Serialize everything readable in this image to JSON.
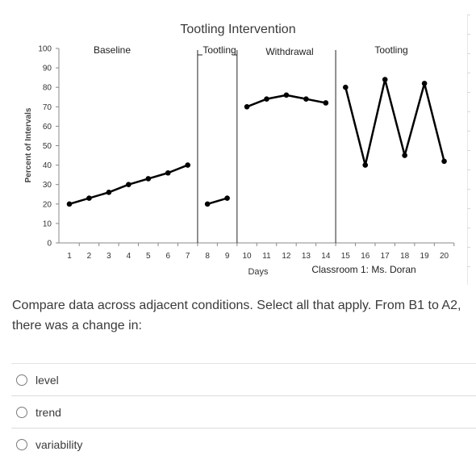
{
  "chart_data": {
    "type": "line",
    "title": "Tootling Intervention",
    "ylabel": "Percent of Intervals",
    "xlabel": "Days",
    "ylim": [
      0,
      100
    ],
    "yticks": [
      0,
      10,
      20,
      30,
      40,
      50,
      60,
      70,
      80,
      90,
      100
    ],
    "xticks": [
      1,
      2,
      3,
      4,
      5,
      6,
      7,
      8,
      9,
      10,
      11,
      12,
      13,
      14,
      15,
      16,
      17,
      18,
      19,
      20
    ],
    "subtitle": "Classroom 1: Ms. Doran",
    "phases": [
      {
        "label": "Baseline",
        "x": [
          1,
          2,
          3,
          4,
          5,
          6,
          7
        ],
        "values": [
          20,
          23,
          26,
          30,
          33,
          36,
          40
        ]
      },
      {
        "label": "Tootling",
        "x": [
          8,
          9
        ],
        "values": [
          20,
          23
        ]
      },
      {
        "label": "Withdrawal",
        "x": [
          10,
          11,
          12,
          13,
          14
        ],
        "values": [
          70,
          74,
          76,
          74,
          72
        ]
      },
      {
        "label": "Tootling",
        "x": [
          15,
          16,
          17,
          18,
          19,
          20
        ],
        "values": [
          80,
          40,
          84,
          45,
          82,
          42
        ]
      }
    ],
    "phase_change_after_day": [
      7.5,
      9.5,
      14.5
    ]
  },
  "question": {
    "text": "Compare data across adjacent conditions. Select all that apply. From B1 to A2, there was a change in:",
    "options": [
      "level",
      "trend",
      "variability"
    ]
  }
}
